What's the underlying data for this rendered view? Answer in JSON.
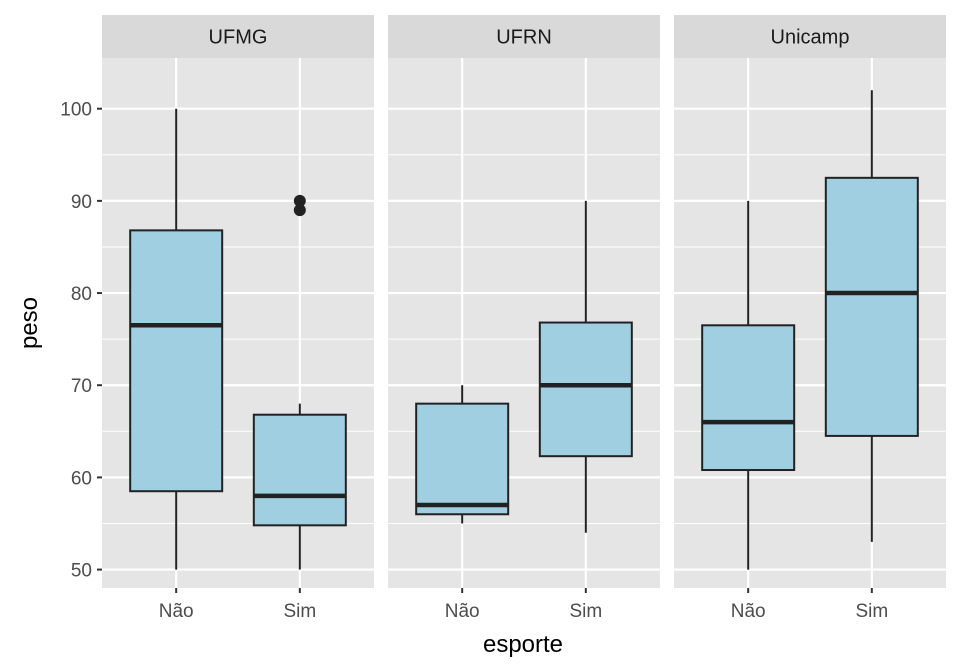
{
  "chart_data": {
    "type": "boxplot",
    "xlabel": "esporte",
    "ylabel": "peso",
    "ylim": [
      48,
      105.5
    ],
    "yticks": [
      50,
      60,
      70,
      80,
      90,
      100
    ],
    "categories": [
      "Não",
      "Sim"
    ],
    "grid": true,
    "colors": {
      "panel_bg": "#e5e5e5",
      "strip_bg": "#d9d9d9",
      "grid": "#ffffff",
      "box_fill": "#a0cfe1",
      "box_line": "#222222",
      "tick": "#333333"
    },
    "facets": [
      {
        "label": "UFMG",
        "boxes": [
          {
            "category": "Não",
            "whisker_low": 50,
            "q1": 58.5,
            "median": 76.5,
            "q3": 86.8,
            "whisker_high": 100,
            "outliers": []
          },
          {
            "category": "Sim",
            "whisker_low": 50,
            "q1": 54.8,
            "median": 58,
            "q3": 66.8,
            "whisker_high": 68,
            "outliers": [
              89,
              90
            ]
          }
        ]
      },
      {
        "label": "UFRN",
        "boxes": [
          {
            "category": "Não",
            "whisker_low": 55,
            "q1": 56,
            "median": 57,
            "q3": 68,
            "whisker_high": 70,
            "outliers": []
          },
          {
            "category": "Sim",
            "whisker_low": 54,
            "q1": 62.3,
            "median": 70,
            "q3": 76.8,
            "whisker_high": 90,
            "outliers": []
          }
        ]
      },
      {
        "label": "Unicamp",
        "boxes": [
          {
            "category": "Não",
            "whisker_low": 50,
            "q1": 60.8,
            "median": 66,
            "q3": 76.5,
            "whisker_high": 90,
            "outliers": []
          },
          {
            "category": "Sim",
            "whisker_low": 53,
            "q1": 64.5,
            "median": 80,
            "q3": 92.5,
            "whisker_high": 102,
            "outliers": []
          }
        ]
      }
    ]
  }
}
